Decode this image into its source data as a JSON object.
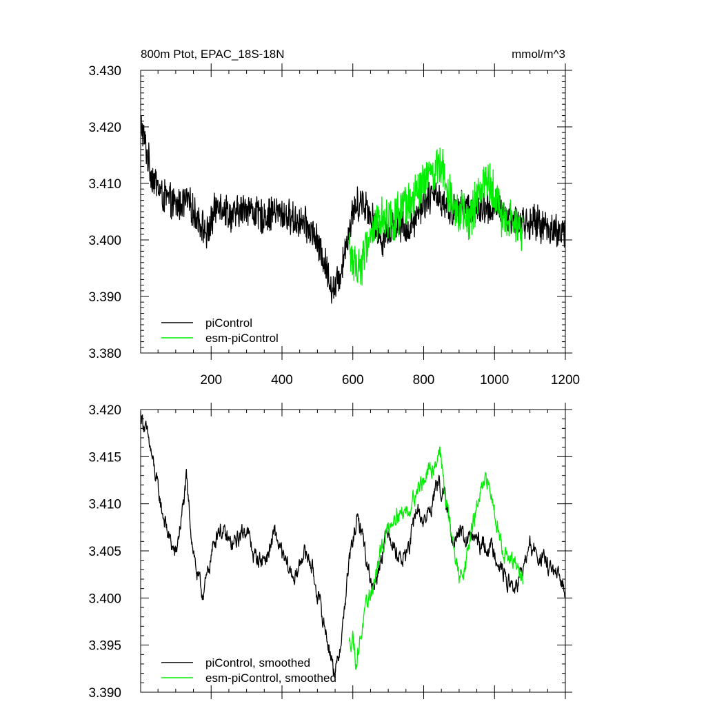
{
  "header": {
    "title": "800m Ptot, EPAC_18S-18N",
    "units": "mmol/m^3"
  },
  "colors": {
    "picontrol": "#000000",
    "esm_picontrol": "#00ee00"
  },
  "chart_data": [
    {
      "type": "line",
      "title": "800m Ptot, EPAC_18S-18N",
      "units": "mmol/m^3",
      "xlim": [
        1,
        1200
      ],
      "ylim": [
        3.38,
        3.43
      ],
      "x_ticks": [
        200,
        400,
        600,
        800,
        1000,
        1200
      ],
      "y_ticks": [
        "3.380",
        "3.390",
        "3.400",
        "3.410",
        "3.420",
        "3.430"
      ],
      "legend": {
        "placement": "bottom-left"
      },
      "series": [
        {
          "name": "piControl",
          "color": "#000000",
          "noise": 0.0035,
          "x": [
            1,
            10,
            30,
            60,
            100,
            130,
            160,
            190,
            220,
            260,
            300,
            340,
            380,
            420,
            460,
            490,
            520,
            545,
            560,
            580,
            600,
            620,
            640,
            680,
            720,
            760,
            800,
            840,
            880,
            920,
            960,
            1000,
            1040,
            1080,
            1120,
            1160,
            1200
          ],
          "y": [
            3.421,
            3.418,
            3.412,
            3.408,
            3.406,
            3.407,
            3.404,
            3.401,
            3.407,
            3.404,
            3.406,
            3.404,
            3.405,
            3.404,
            3.403,
            3.401,
            3.396,
            3.391,
            3.393,
            3.399,
            3.405,
            3.407,
            3.406,
            3.4,
            3.403,
            3.402,
            3.407,
            3.408,
            3.405,
            3.406,
            3.405,
            3.406,
            3.404,
            3.403,
            3.403,
            3.402,
            3.401
          ]
        },
        {
          "name": "esm-piControl",
          "color": "#00ee00",
          "noise": 0.0045,
          "x": [
            590,
            610,
            625,
            650,
            680,
            720,
            760,
            800,
            830,
            845,
            870,
            900,
            930,
            960,
            980,
            1000,
            1030,
            1060,
            1080
          ],
          "y": [
            3.398,
            3.395,
            3.396,
            3.401,
            3.404,
            3.404,
            3.406,
            3.41,
            3.412,
            3.414,
            3.409,
            3.405,
            3.403,
            3.409,
            3.411,
            3.408,
            3.403,
            3.403,
            3.401
          ]
        }
      ]
    },
    {
      "type": "line",
      "xlim": [
        1,
        1200
      ],
      "ylim": [
        3.39,
        3.42
      ],
      "y_ticks": [
        "3.390",
        "3.395",
        "3.400",
        "3.405",
        "3.410",
        "3.415",
        "3.420"
      ],
      "legend": {
        "placement": "bottom-left"
      },
      "series": [
        {
          "name": "piControl, smoothed",
          "color": "#000000",
          "noise": 0.0009,
          "x": [
            1,
            10,
            25,
            40,
            60,
            80,
            100,
            120,
            130,
            145,
            160,
            175,
            185,
            200,
            220,
            240,
            260,
            280,
            300,
            320,
            340,
            360,
            380,
            400,
            420,
            440,
            460,
            480,
            500,
            520,
            535,
            545,
            555,
            570,
            590,
            610,
            625,
            640,
            660,
            680,
            700,
            720,
            740,
            760,
            780,
            800,
            820,
            840,
            860,
            880,
            900,
            920,
            940,
            960,
            980,
            1000,
            1020,
            1040,
            1060,
            1080,
            1100,
            1120,
            1140,
            1160,
            1180,
            1200
          ],
          "y": [
            3.4195,
            3.4185,
            3.4165,
            3.4135,
            3.4095,
            3.4065,
            3.4045,
            3.4095,
            3.4125,
            3.4065,
            3.4025,
            3.4005,
            3.4015,
            3.4045,
            3.4075,
            3.4065,
            3.4055,
            3.4065,
            3.4075,
            3.4045,
            3.404,
            3.4045,
            3.407,
            3.4045,
            3.403,
            3.402,
            3.405,
            3.404,
            3.4005,
            3.397,
            3.3945,
            3.3925,
            3.3925,
            3.3965,
            3.404,
            3.408,
            3.4075,
            3.4035,
            3.401,
            3.4045,
            3.4075,
            3.405,
            3.404,
            3.4055,
            3.4095,
            3.408,
            3.4095,
            3.4125,
            3.4105,
            3.4065,
            3.407,
            3.406,
            3.4065,
            3.4055,
            3.4055,
            3.405,
            3.403,
            3.4015,
            3.401,
            3.403,
            3.4055,
            3.4045,
            3.404,
            3.403,
            3.402,
            3.401
          ]
        },
        {
          "name": "esm-piControl, smoothed",
          "color": "#00ee00",
          "noise": 0.0009,
          "x": [
            590,
            600,
            610,
            620,
            630,
            645,
            660,
            680,
            700,
            720,
            740,
            760,
            780,
            800,
            820,
            835,
            845,
            860,
            880,
            900,
            920,
            940,
            960,
            980,
            1000,
            1020,
            1040,
            1060,
            1080
          ],
          "y": [
            3.395,
            3.396,
            3.393,
            3.3955,
            3.3975,
            3.4,
            3.4015,
            3.405,
            3.4075,
            3.409,
            3.409,
            3.4095,
            3.4115,
            3.4125,
            3.4135,
            3.4145,
            3.416,
            3.411,
            3.4065,
            3.402,
            3.404,
            3.408,
            3.411,
            3.4125,
            3.4095,
            3.4055,
            3.404,
            3.4035,
            3.402
          ]
        }
      ]
    }
  ]
}
